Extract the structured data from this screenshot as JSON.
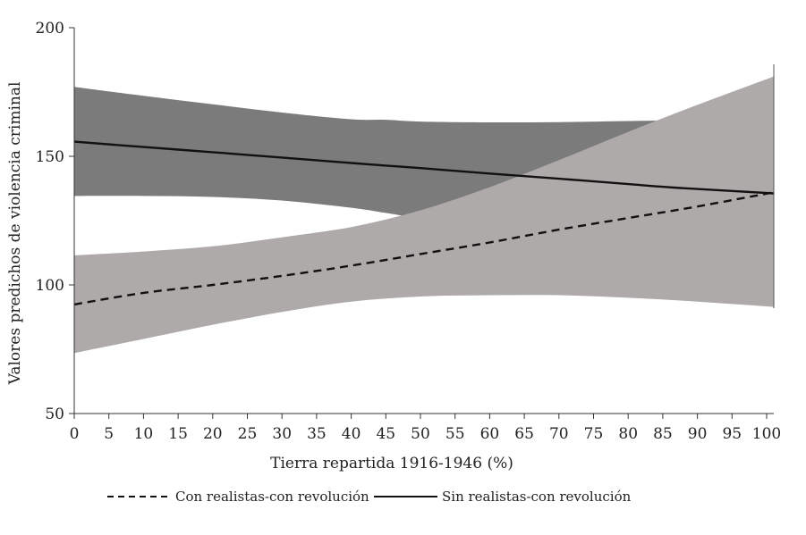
{
  "chart_data": {
    "type": "line",
    "title": "",
    "xlabel": "Tierra repartida 1916-1946 (%)",
    "ylabel": "Valores predichos de violencia criminal",
    "xlim": [
      0,
      101
    ],
    "ylim": [
      50,
      200
    ],
    "xticks": [
      0,
      5,
      10,
      15,
      20,
      25,
      30,
      35,
      40,
      45,
      50,
      55,
      60,
      65,
      70,
      75,
      80,
      85,
      90,
      95,
      100
    ],
    "yticks": [
      50,
      100,
      150,
      200
    ],
    "series": [
      {
        "name": "Sin realistas-con revolución",
        "style": "solid",
        "line_color": "#111111",
        "band_color": "#7b7b7b",
        "x": [
          0,
          10,
          20,
          30,
          40,
          45,
          50,
          60,
          70,
          80,
          88
        ],
        "y": [
          155.7,
          153.6,
          151.6,
          149.5,
          147.4,
          146.4,
          145.4,
          143.3,
          141.3,
          139.2,
          137.6
        ],
        "upper": [
          177.0,
          173.5,
          170.2,
          167.0,
          164.4,
          164.2,
          163.5,
          163.2,
          163.3,
          163.7,
          164.0
        ],
        "lower": [
          134.6,
          134.6,
          134.2,
          132.8,
          130.0,
          128.0,
          126.0,
          124.0,
          122.0,
          119.0,
          116.0
        ],
        "band_x_end": 101,
        "upper_end": 164.0,
        "lower_end_from_line": true,
        "y_end": 135.6
      },
      {
        "name": "Con realistas-con revolución",
        "style": "dashed",
        "line_color": "#111111",
        "band_color": "#aeaaa9",
        "x": [
          0,
          10,
          20,
          30,
          40,
          50,
          60,
          70,
          80,
          90,
          101
        ],
        "y": [
          92.4,
          96.9,
          100.0,
          103.5,
          107.5,
          112.0,
          116.5,
          121.5,
          126.0,
          130.5,
          136.0
        ],
        "upper": [
          111.5,
          113.0,
          115.0,
          118.5,
          122.5,
          129.0,
          138.0,
          148.5,
          159.5,
          170.0,
          181.0
        ],
        "lower": [
          73.5,
          79.0,
          84.5,
          89.5,
          93.5,
          95.5,
          96.0,
          96.0,
          95.0,
          93.5,
          91.5
        ]
      }
    ],
    "legend": [
      {
        "label": "Con realistas-con revolución",
        "style": "dashed"
      },
      {
        "label": "Sin realistas-con revolución",
        "style": "solid"
      }
    ],
    "legend_position": "bottom-left"
  }
}
